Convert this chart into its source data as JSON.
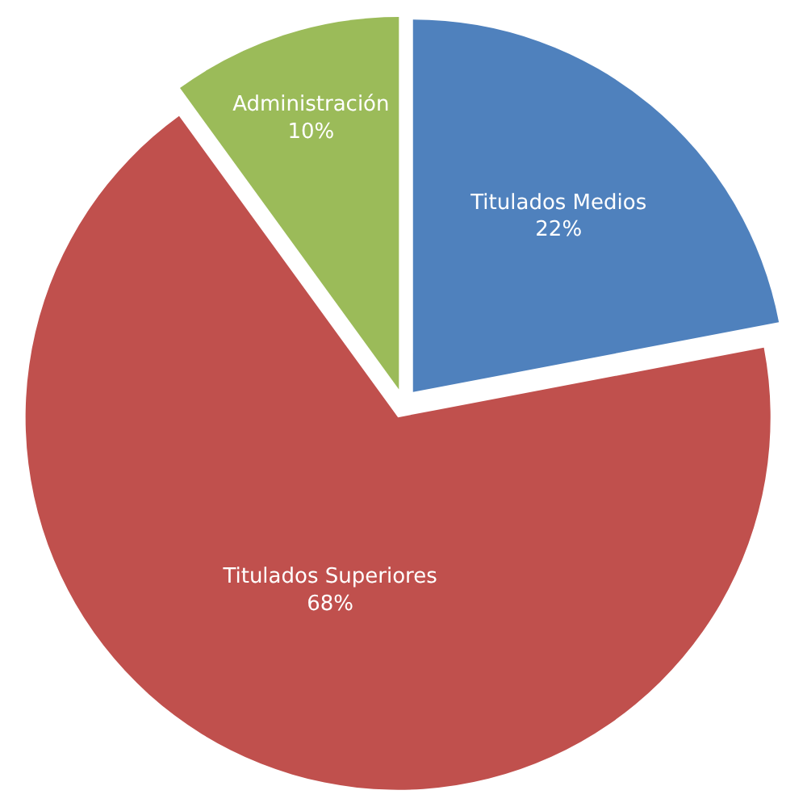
{
  "chart_data": {
    "type": "pie",
    "categories": [
      "Titulados Medios",
      "Titulados Superiores",
      "Administración"
    ],
    "values": [
      22,
      68,
      10
    ],
    "value_labels": [
      "22%",
      "68%",
      "10%"
    ],
    "colors": [
      "#4f81bd",
      "#c0504d",
      "#9bbb59"
    ],
    "legend": false
  }
}
